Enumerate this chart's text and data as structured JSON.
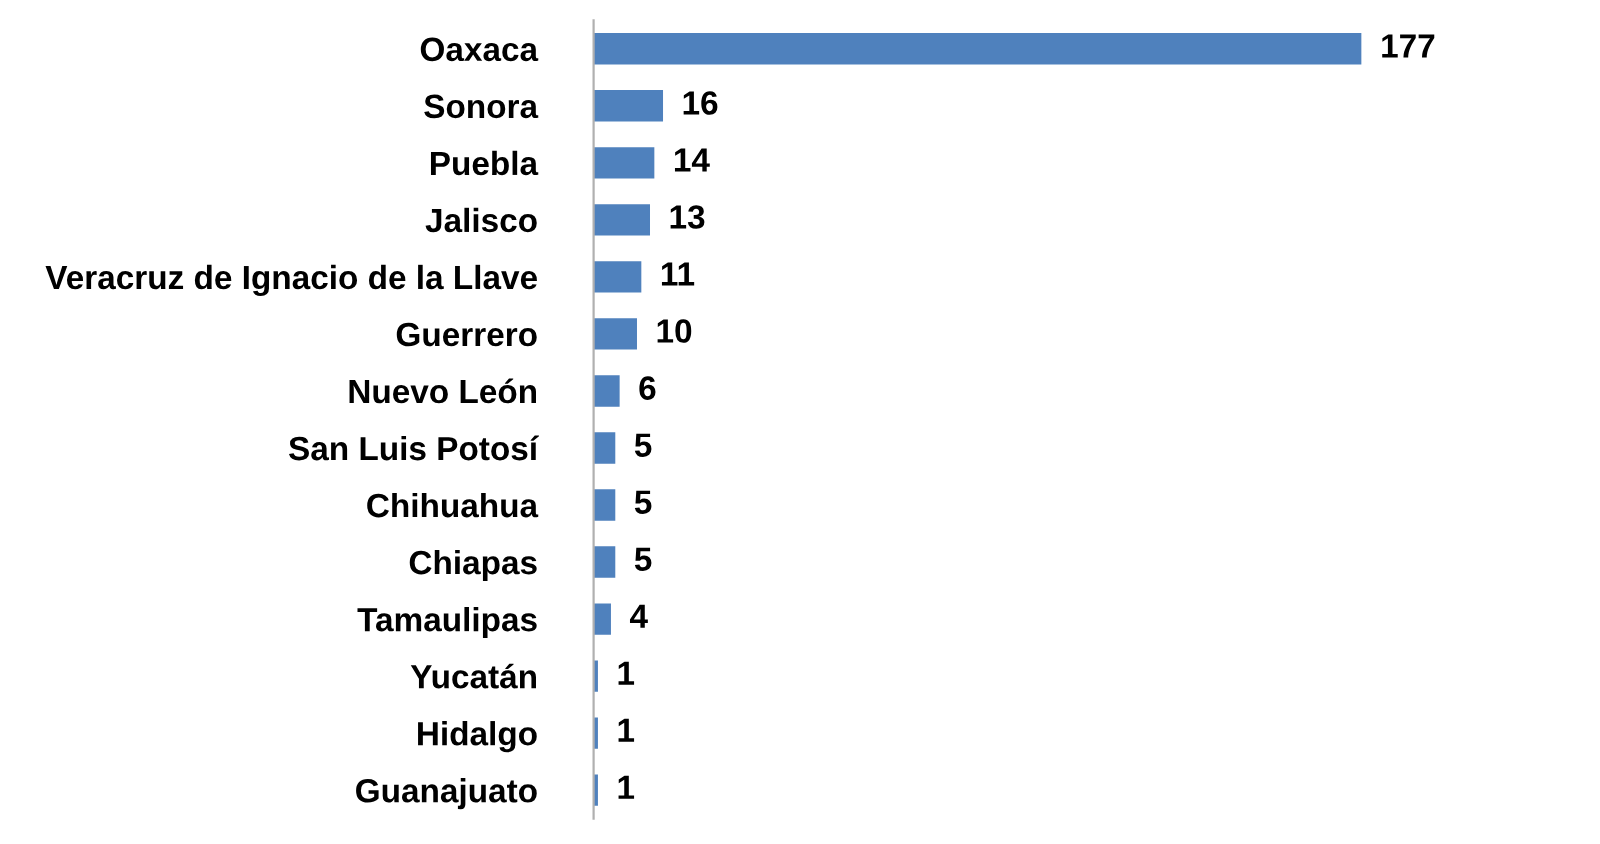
{
  "chart_data": {
    "type": "bar",
    "orientation": "horizontal",
    "categories": [
      "Oaxaca",
      "Sonora",
      "Puebla",
      "Jalisco",
      "Veracruz de Ignacio de la Llave",
      "Guerrero",
      "Nuevo León",
      "San Luis Potosí",
      "Chihuahua",
      "Chiapas",
      "Tamaulipas",
      "Yucatán",
      "Hidalgo",
      "Guanajuato"
    ],
    "values": [
      177,
      16,
      14,
      13,
      11,
      10,
      6,
      5,
      5,
      5,
      4,
      1,
      1,
      1
    ],
    "color": "#4f81bd",
    "data_labels": true,
    "grid": false,
    "legend": false
  }
}
